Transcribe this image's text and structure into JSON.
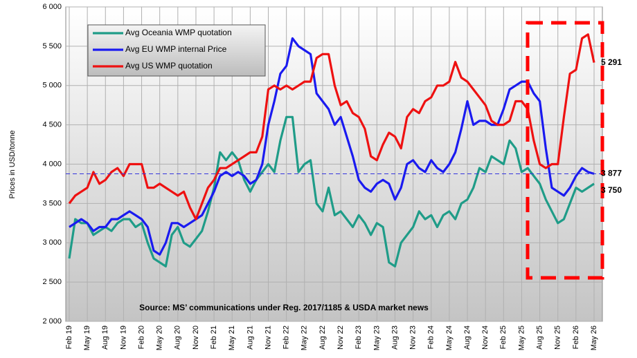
{
  "chart_data": {
    "type": "line",
    "ylabel": "Prices in USD/tonne",
    "annotation": "Source: MS’ communications under Reg. 2017/1185 & USDA market news",
    "categories": [
      "Feb 19",
      null,
      null,
      "May 19",
      null,
      null,
      "Aug 19",
      null,
      null,
      "Nov 19",
      null,
      null,
      "Feb 20",
      null,
      null,
      "May 20",
      null,
      null,
      "Aug 20",
      null,
      null,
      "Nov 20",
      null,
      null,
      "Feb 21",
      null,
      null,
      "May 21",
      null,
      null,
      "Aug 21",
      null,
      null,
      "Nov 21",
      null,
      null,
      "Feb 22",
      null,
      null,
      "May 22",
      null,
      null,
      "Aug 22",
      null,
      null,
      "Nov 22",
      null,
      null,
      "Feb 23",
      null,
      null,
      "May 23",
      null,
      null,
      "Aug 23",
      null,
      null,
      "Nov 23",
      null,
      null,
      "Feb 24",
      null,
      null,
      "May 24",
      null,
      null,
      "Aug 24",
      null,
      null,
      "Nov 24",
      null,
      null,
      "Feb 25",
      null,
      null,
      "May 25",
      null,
      null,
      "Aug 25",
      null,
      null,
      "Nov 25",
      null,
      null,
      "Feb 26",
      null,
      null,
      "May 26"
    ],
    "series": [
      {
        "name": "Avg Oceania WMP quotation",
        "color": "#1f9c88",
        "values": [
          2800,
          3300,
          3250,
          3250,
          3100,
          3150,
          3200,
          3150,
          3250,
          3300,
          3300,
          3200,
          3250,
          3000,
          2800,
          2750,
          2700,
          3100,
          3200,
          3000,
          2950,
          3050,
          3150,
          3400,
          3700,
          4150,
          4050,
          4150,
          4050,
          3800,
          3650,
          3800,
          3900,
          4000,
          3900,
          4300,
          4600,
          4600,
          3900,
          4000,
          4050,
          3500,
          3400,
          3700,
          3350,
          3400,
          3300,
          3200,
          3350,
          3250,
          3100,
          3250,
          3200,
          2750,
          2700,
          3000,
          3100,
          3200,
          3400,
          3300,
          3350,
          3200,
          3350,
          3400,
          3300,
          3500,
          3550,
          3700,
          3950,
          3900,
          4100,
          4050,
          4000,
          4300,
          4200,
          3900,
          3950,
          3850,
          3750,
          3550,
          3400,
          3250,
          3300,
          3500,
          3700,
          3650,
          3700,
          3750
        ],
        "value_labels": [
          null,
          null,
          null,
          null,
          null,
          null,
          null,
          null,
          null,
          null,
          null,
          null,
          null,
          null,
          null,
          null,
          null,
          null,
          null,
          null,
          null,
          null,
          null,
          null,
          null,
          null,
          null,
          null,
          null,
          null,
          null,
          null,
          null,
          null,
          null,
          null,
          null,
          null,
          null,
          null,
          null,
          null,
          null,
          null,
          null,
          null,
          null,
          null,
          null,
          null,
          null,
          null,
          null,
          null,
          null,
          null,
          null,
          null,
          null,
          null,
          null,
          null,
          null,
          null,
          null,
          null,
          null,
          null,
          null,
          null,
          null,
          null,
          null,
          null,
          null,
          null,
          null,
          null,
          null,
          null,
          null,
          null,
          null,
          null,
          null,
          null,
          null,
          "3 750"
        ]
      },
      {
        "name": "Avg EU WMP internal Price",
        "color": "#1a1af0",
        "values": [
          3200,
          3250,
          3300,
          3250,
          3150,
          3200,
          3200,
          3300,
          3300,
          3350,
          3400,
          3350,
          3300,
          3200,
          2900,
          2850,
          3000,
          3250,
          3250,
          3200,
          3250,
          3300,
          3350,
          3500,
          3650,
          3850,
          3900,
          3850,
          3900,
          3850,
          3750,
          3800,
          4000,
          4500,
          4800,
          5150,
          5250,
          5600,
          5500,
          5450,
          5400,
          4900,
          4800,
          4700,
          4500,
          4600,
          4350,
          4100,
          3800,
          3700,
          3650,
          3750,
          3800,
          3750,
          3550,
          3700,
          4000,
          4050,
          3950,
          3900,
          4050,
          3950,
          3900,
          4000,
          4150,
          4450,
          4800,
          4500,
          4550,
          4550,
          4500,
          4500,
          4700,
          4950,
          5000,
          5050,
          5050,
          4900,
          4800,
          4200,
          3700,
          3650,
          3600,
          3700,
          3850,
          3950,
          3900,
          3877
        ],
        "value_labels": [
          null,
          null,
          null,
          null,
          null,
          null,
          null,
          null,
          null,
          null,
          null,
          null,
          null,
          null,
          null,
          null,
          null,
          null,
          null,
          null,
          null,
          null,
          null,
          null,
          null,
          null,
          null,
          null,
          null,
          null,
          null,
          null,
          null,
          null,
          null,
          null,
          null,
          null,
          null,
          null,
          null,
          null,
          null,
          null,
          null,
          null,
          null,
          null,
          null,
          null,
          null,
          null,
          null,
          null,
          null,
          null,
          null,
          null,
          null,
          null,
          null,
          null,
          null,
          null,
          null,
          null,
          null,
          null,
          null,
          null,
          null,
          null,
          null,
          null,
          null,
          null,
          null,
          null,
          null,
          null,
          null,
          null,
          null,
          null,
          null,
          null,
          null,
          "3 877"
        ]
      },
      {
        "name": "Avg US WMP quotation",
        "color": "#ee1111",
        "values": [
          3500,
          3600,
          3650,
          3700,
          3900,
          3750,
          3800,
          3900,
          3950,
          3850,
          4000,
          4000,
          4000,
          3700,
          3700,
          3750,
          3700,
          3650,
          3600,
          3650,
          3450,
          3300,
          3500,
          3700,
          3800,
          3950,
          3950,
          4000,
          4050,
          4100,
          4150,
          4150,
          4350,
          4950,
          5000,
          4950,
          5000,
          4950,
          5000,
          5050,
          5050,
          5350,
          5400,
          5400,
          5000,
          4750,
          4800,
          4650,
          4600,
          4450,
          4100,
          4050,
          4250,
          4400,
          4350,
          4200,
          4600,
          4700,
          4650,
          4800,
          4850,
          5000,
          5000,
          5050,
          5300,
          5100,
          5050,
          4950,
          4850,
          4750,
          4550,
          4500,
          4500,
          4550,
          4800,
          4800,
          4700,
          4300,
          4000,
          3950,
          4000,
          4000,
          4600,
          5150,
          5200,
          5600,
          5650,
          5291
        ],
        "value_labels": [
          null,
          null,
          null,
          null,
          null,
          null,
          null,
          null,
          null,
          null,
          null,
          null,
          null,
          null,
          null,
          null,
          null,
          null,
          null,
          null,
          null,
          null,
          null,
          null,
          null,
          null,
          null,
          null,
          null,
          null,
          null,
          null,
          null,
          null,
          null,
          null,
          null,
          null,
          null,
          null,
          null,
          null,
          null,
          null,
          null,
          null,
          null,
          null,
          null,
          null,
          null,
          null,
          null,
          null,
          null,
          null,
          null,
          null,
          null,
          null,
          null,
          null,
          null,
          null,
          null,
          null,
          null,
          null,
          null,
          null,
          null,
          null,
          null,
          null,
          null,
          null,
          null,
          null,
          null,
          null,
          null,
          null,
          null,
          null,
          null,
          null,
          null,
          "5 291"
        ]
      }
    ],
    "ylim": [
      2000,
      6000
    ],
    "yticks": [
      {
        "value": 2000,
        "label": "2 000"
      },
      {
        "value": 2500,
        "label": "2 500"
      },
      {
        "value": 3000,
        "label": "3 000"
      },
      {
        "value": 3500,
        "label": "3 500"
      },
      {
        "value": 4000,
        "label": "4 000"
      },
      {
        "value": 4500,
        "label": "4 500"
      },
      {
        "value": 5000,
        "label": "5 000"
      },
      {
        "value": 5500,
        "label": "5 500"
      },
      {
        "value": 6000,
        "label": "6 000"
      }
    ],
    "grid": true
  }
}
